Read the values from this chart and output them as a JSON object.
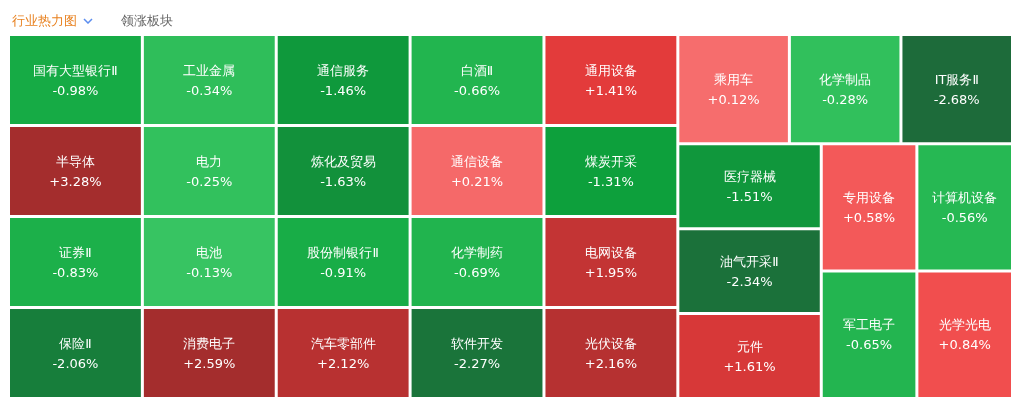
{
  "chart_data": {
    "type": "other",
    "title": "行业热力图",
    "annotations": [
      "领涨板块"
    ],
    "categories": [
      "国有大型银行Ⅱ",
      "半导体",
      "证券Ⅱ",
      "保险Ⅱ",
      "工业金属",
      "电力",
      "电池",
      "消费电子",
      "通信服务",
      "炼化及贸易",
      "股份制银行Ⅱ",
      "汽车零部件",
      "白酒Ⅱ",
      "通信设备",
      "化学制药",
      "软件开发",
      "通用设备",
      "煤炭开采",
      "电网设备",
      "光伏设备",
      "乘用车",
      "化学制品",
      "IT服务Ⅱ",
      "医疗器械",
      "油气开采Ⅱ",
      "元件",
      "专用设备",
      "计算机设备",
      "军工电子",
      "光学光电"
    ],
    "values": [
      -0.98,
      3.28,
      -0.83,
      -2.06,
      -0.34,
      -0.25,
      -0.13,
      2.59,
      -1.46,
      -1.63,
      -0.91,
      2.12,
      -0.66,
      0.21,
      -0.69,
      -2.27,
      1.41,
      -1.31,
      1.95,
      2.16,
      0.12,
      -0.28,
      -2.68,
      -1.51,
      -2.34,
      1.61,
      0.58,
      -0.56,
      -0.65,
      0.84
    ],
    "value_labels": [
      "-0.98%",
      "+3.28%",
      "-0.83%",
      "-2.06%",
      "-0.34%",
      "-0.25%",
      "-0.13%",
      "+2.59%",
      "-1.46%",
      "-1.63%",
      "-0.91%",
      "+2.12%",
      "-0.66%",
      "+0.21%",
      "-0.69%",
      "-2.27%",
      "+1.41%",
      "-1.31%",
      "+1.95%",
      "+2.16%",
      "+0.12%",
      "-0.28%",
      "-2.68%",
      "-1.51%",
      "-2.34%",
      "+1.61%",
      "+0.58%",
      "-0.56%",
      "-0.65%",
      "+0.84%"
    ]
  }
}
